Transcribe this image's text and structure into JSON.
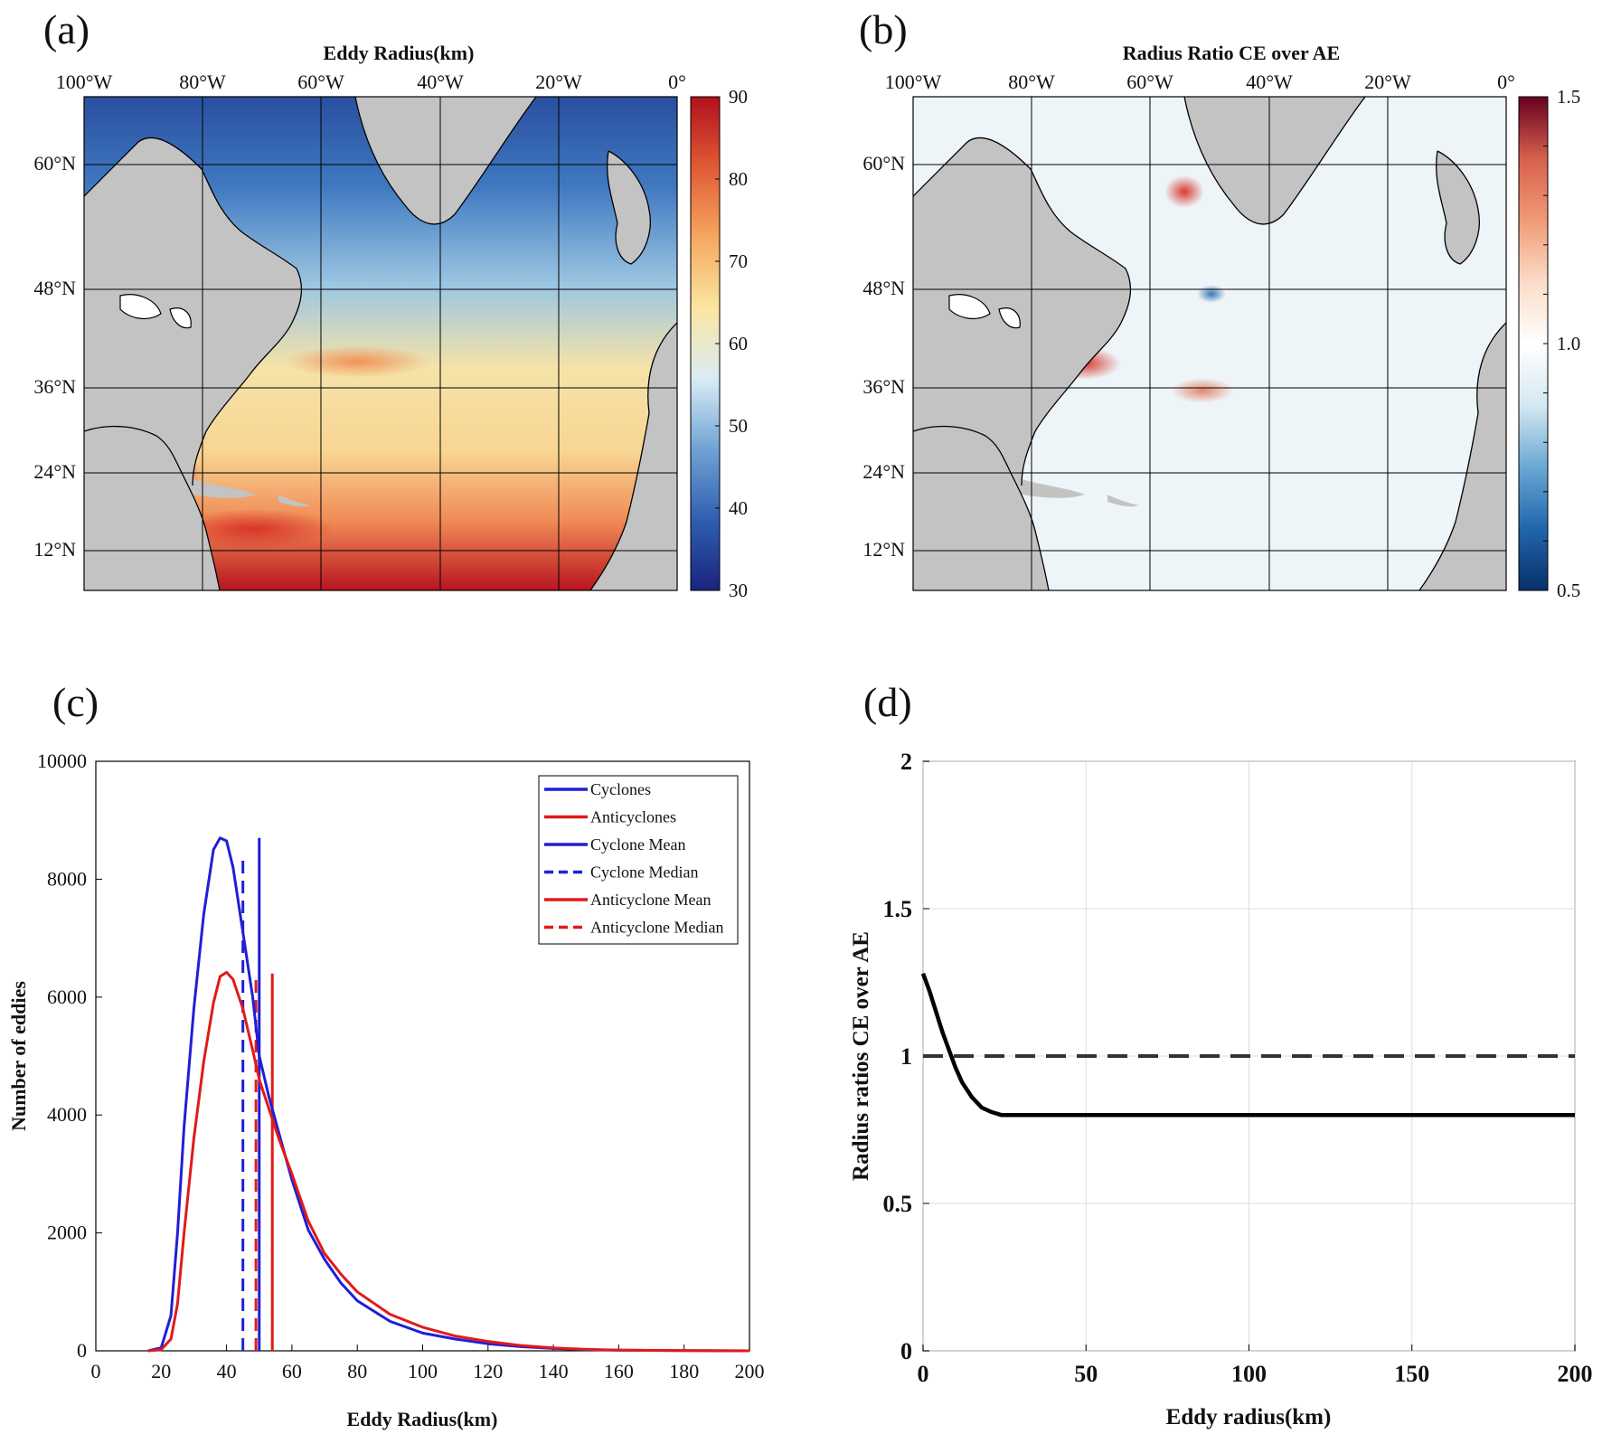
{
  "panels": {
    "a": {
      "label": "(a)",
      "title": "Eddy Radius(km)",
      "lon_labels": [
        "100°W",
        "80°W",
        "60°W",
        "40°W",
        "20°W",
        "0°"
      ],
      "lat_labels": [
        "60°N",
        "48°N",
        "36°N",
        "24°N",
        "12°N"
      ],
      "colorbar": {
        "ticks": [
          "90",
          "80",
          "70",
          "60",
          "50",
          "40",
          "30"
        ],
        "min": 30,
        "max": 90,
        "colors": [
          "#1a237e",
          "#2f5fb0",
          "#6fa3d4",
          "#d9ecf5",
          "#fbe6a2",
          "#f5a860",
          "#e25a35",
          "#b1101c"
        ]
      }
    },
    "b": {
      "label": "(b)",
      "title": "Radius Ratio CE over AE",
      "lon_labels": [
        "100°W",
        "80°W",
        "60°W",
        "40°W",
        "20°W",
        "0°"
      ],
      "lat_labels": [
        "60°N",
        "48°N",
        "36°N",
        "24°N",
        "12°N"
      ],
      "colorbar": {
        "ticks": [
          "1.5",
          "1.0",
          "0.5"
        ],
        "min": 0.5,
        "max": 1.5,
        "colors": [
          "#08306b",
          "#2166ac",
          "#6aa8d4",
          "#d5e8f2",
          "#ffffff",
          "#fbdcc8",
          "#f09a75",
          "#d6604d",
          "#67001f"
        ]
      }
    },
    "c": {
      "label": "(c)"
    },
    "d": {
      "label": "(d)"
    }
  },
  "chart_data": [
    {
      "panel": "c",
      "type": "line",
      "title": "",
      "xlabel": "Eddy Radius(km)",
      "ylabel": "Number of eddies",
      "xlim": [
        0,
        200
      ],
      "ylim": [
        0,
        10000
      ],
      "xticks": [
        "0",
        "20",
        "40",
        "60",
        "80",
        "100",
        "120",
        "140",
        "160",
        "180",
        "200"
      ],
      "yticks": [
        "0",
        "2000",
        "4000",
        "6000",
        "8000",
        "10000"
      ],
      "x": [
        16,
        20,
        23,
        25,
        27,
        30,
        33,
        36,
        38,
        40,
        42,
        45,
        48,
        50,
        53,
        56,
        60,
        65,
        70,
        75,
        80,
        90,
        100,
        110,
        120,
        130,
        140,
        150,
        160,
        180,
        200
      ],
      "series": [
        {
          "name": "Cyclones",
          "color": "#1f1fd6",
          "values": [
            0,
            50,
            600,
            2000,
            3800,
            5800,
            7400,
            8500,
            8700,
            8650,
            8200,
            7100,
            6000,
            5000,
            4300,
            3700,
            2900,
            2050,
            1550,
            1150,
            850,
            500,
            300,
            200,
            120,
            70,
            40,
            20,
            10,
            5,
            0
          ]
        },
        {
          "name": "Anticyclones",
          "color": "#e01a1a",
          "values": [
            0,
            20,
            200,
            800,
            2000,
            3600,
            4900,
            5900,
            6350,
            6420,
            6300,
            5800,
            5100,
            4600,
            4100,
            3600,
            3000,
            2200,
            1650,
            1300,
            1000,
            620,
            400,
            250,
            160,
            90,
            50,
            25,
            10,
            5,
            0
          ]
        }
      ],
      "vlines": [
        {
          "name": "Cyclone Mean",
          "x": 50,
          "top": 8700,
          "color": "#1f1fd6",
          "style": "solid"
        },
        {
          "name": "Cyclone Median",
          "x": 45,
          "top": 8400,
          "color": "#1f1fd6",
          "style": "dashed"
        },
        {
          "name": "Anticyclone Mean",
          "x": 54,
          "top": 6400,
          "color": "#e01a1a",
          "style": "solid"
        },
        {
          "name": "Anticyclone Median",
          "x": 49,
          "top": 6400,
          "color": "#e01a1a",
          "style": "dashed"
        }
      ],
      "legend": {
        "position": "top-right",
        "entries": [
          {
            "label": "Cyclones",
            "color": "#1f1fd6",
            "style": "solid"
          },
          {
            "label": "Anticyclones",
            "color": "#e01a1a",
            "style": "solid"
          },
          {
            "label": "Cyclone Mean",
            "color": "#1f1fd6",
            "style": "solid"
          },
          {
            "label": "Cyclone Median",
            "color": "#1f1fd6",
            "style": "dashed"
          },
          {
            "label": "Anticyclone Mean",
            "color": "#e01a1a",
            "style": "solid"
          },
          {
            "label": "Anticyclone Median",
            "color": "#e01a1a",
            "style": "dashed"
          }
        ]
      }
    },
    {
      "panel": "d",
      "type": "line",
      "title": "",
      "xlabel": "Eddy radius(km)",
      "ylabel": "Radius ratios CE over AE",
      "xlim": [
        0,
        200
      ],
      "ylim": [
        0,
        2
      ],
      "xticks": [
        "0",
        "50",
        "100",
        "150",
        "200"
      ],
      "yticks": [
        "0",
        "0.5",
        "1",
        "1.5",
        "2"
      ],
      "grid": true,
      "x": [
        0,
        2,
        4,
        6,
        8,
        10,
        12,
        15,
        18,
        21,
        24,
        27,
        30,
        40,
        60,
        80,
        100,
        120,
        140,
        160,
        180,
        200
      ],
      "series": [
        {
          "name": "ratio",
          "color": "#000000",
          "values": [
            1.28,
            1.22,
            1.15,
            1.08,
            1.02,
            0.96,
            0.91,
            0.86,
            0.825,
            0.81,
            0.8,
            0.8,
            0.8,
            0.8,
            0.8,
            0.8,
            0.8,
            0.8,
            0.8,
            0.8,
            0.8,
            0.8
          ]
        },
        {
          "name": "reference",
          "color": "#333333",
          "style": "dashed",
          "values": [
            1,
            1,
            1,
            1,
            1,
            1,
            1,
            1,
            1,
            1,
            1,
            1,
            1,
            1,
            1,
            1,
            1,
            1,
            1,
            1,
            1,
            1
          ]
        }
      ]
    }
  ]
}
